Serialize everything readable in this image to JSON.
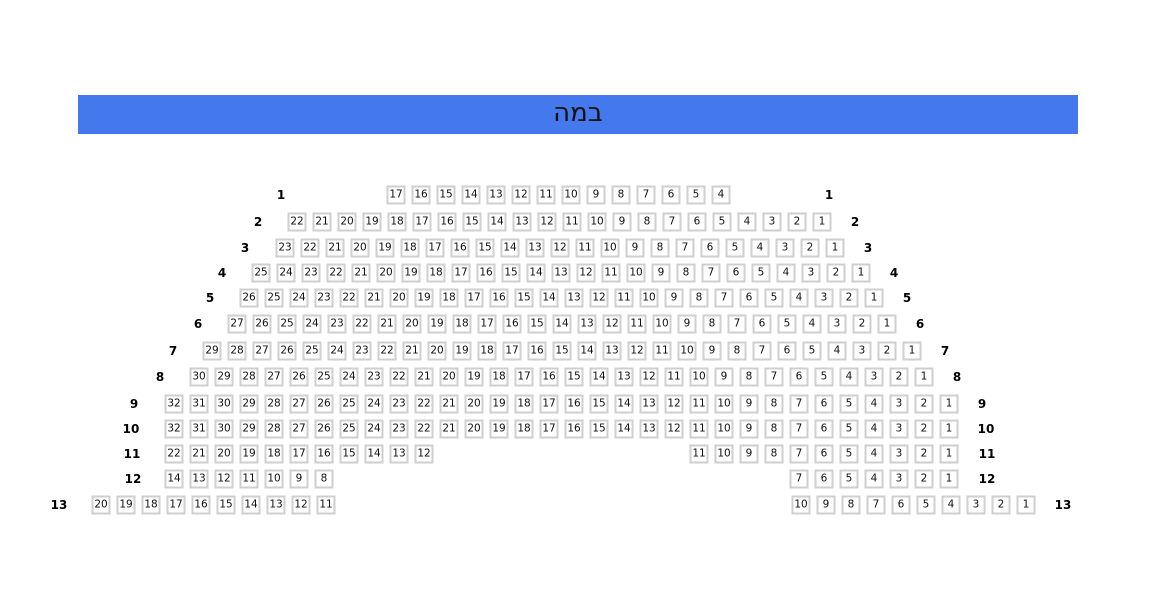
{
  "stage": {
    "label": "במה",
    "color": "#4479ed"
  },
  "rows": [
    {
      "label": "1",
      "segments": [
        [
          17,
          16,
          15,
          14,
          13,
          12,
          11,
          10,
          9,
          8,
          7,
          6,
          5,
          4
        ]
      ]
    },
    {
      "label": "2",
      "segments": [
        [
          22,
          21,
          20,
          19,
          18,
          17,
          16,
          15,
          14,
          13,
          12,
          11,
          10,
          9,
          8,
          7,
          6,
          5,
          4,
          3,
          2,
          1
        ]
      ]
    },
    {
      "label": "3",
      "segments": [
        [
          23,
          22,
          21,
          20,
          19,
          18,
          17,
          16,
          15,
          14,
          13,
          12,
          11,
          10,
          9,
          8,
          7,
          6,
          5,
          4,
          3,
          2,
          1
        ]
      ]
    },
    {
      "label": "4",
      "segments": [
        [
          25,
          24,
          23,
          22,
          21,
          20,
          19,
          18,
          17,
          16,
          15,
          14,
          13,
          12,
          11,
          10,
          9,
          8,
          7,
          6,
          5,
          4,
          3,
          2,
          1
        ]
      ]
    },
    {
      "label": "5",
      "segments": [
        [
          26,
          25,
          24,
          23,
          22,
          21,
          20,
          19,
          18,
          17,
          16,
          15,
          14,
          13,
          12,
          11,
          10,
          9,
          8,
          7,
          6,
          5,
          4,
          3,
          2,
          1
        ]
      ]
    },
    {
      "label": "6",
      "segments": [
        [
          27,
          26,
          25,
          24,
          23,
          22,
          21,
          20,
          19,
          18,
          17,
          16,
          15,
          14,
          13,
          12,
          11,
          10,
          9,
          8,
          7,
          6,
          5,
          4,
          3,
          2,
          1
        ]
      ]
    },
    {
      "label": "7",
      "segments": [
        [
          29,
          28,
          27,
          26,
          25,
          24,
          23,
          22,
          21,
          20,
          19,
          18,
          17,
          16,
          15,
          14,
          13,
          12,
          11,
          10,
          9,
          8,
          7,
          6,
          5,
          4,
          3,
          2,
          1
        ]
      ]
    },
    {
      "label": "8",
      "segments": [
        [
          30,
          29,
          28,
          27,
          26,
          25,
          24,
          23,
          22,
          21,
          20,
          19,
          18,
          17,
          16,
          15,
          14,
          13,
          12,
          11,
          10,
          9,
          8,
          7,
          6,
          5,
          4,
          3,
          2,
          1
        ]
      ]
    },
    {
      "label": "9",
      "segments": [
        [
          32,
          31,
          30,
          29,
          28,
          27,
          26,
          25,
          24,
          23,
          22,
          21,
          20,
          19,
          18,
          17,
          16,
          15,
          14,
          13,
          12,
          11,
          10,
          9,
          8,
          7,
          6,
          5,
          4,
          3,
          2,
          1
        ]
      ]
    },
    {
      "label": "10",
      "segments": [
        [
          32,
          31,
          30,
          29,
          28,
          27,
          26,
          25,
          24,
          23,
          22,
          21,
          20,
          19,
          18,
          17,
          16,
          15,
          14,
          13,
          12,
          11,
          10,
          9,
          8,
          7,
          6,
          5,
          4,
          3,
          2,
          1
        ]
      ]
    },
    {
      "label": "11",
      "segments": [
        [
          22,
          21,
          20,
          19,
          18,
          17,
          16,
          15,
          14,
          13,
          12
        ],
        [
          11,
          10,
          9,
          8,
          7,
          6,
          5,
          4,
          3,
          2,
          1
        ]
      ]
    },
    {
      "label": "12",
      "segments": [
        [
          14,
          13,
          12,
          11,
          10,
          9,
          8
        ],
        [
          7,
          6,
          5,
          4,
          3,
          2,
          1
        ]
      ]
    },
    {
      "label": "13",
      "segments": [
        [
          20,
          19,
          18,
          17,
          16,
          15,
          14,
          13,
          12,
          11
        ],
        [
          10,
          9,
          8,
          7,
          6,
          5,
          4,
          3,
          2,
          1
        ]
      ]
    }
  ]
}
